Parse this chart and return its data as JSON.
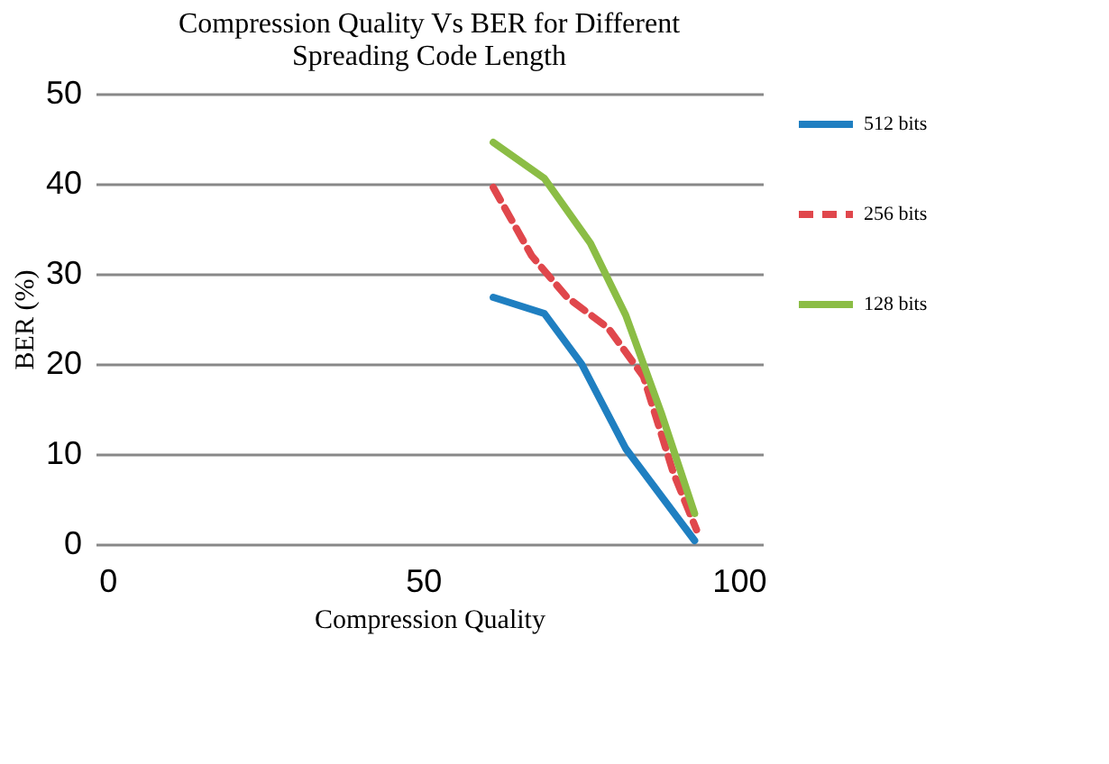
{
  "chart_data": {
    "type": "line",
    "title": [
      "Compression Quality Vs BER for Different",
      "Spreading Code Length"
    ],
    "xlabel": "Compression Quality",
    "ylabel": "BER (%)",
    "xlim": [
      -1.9,
      103.8
    ],
    "xticks": [
      0,
      50,
      100
    ],
    "ylim": [
      0,
      50
    ],
    "yticks": [
      0,
      10,
      20,
      30,
      40,
      50
    ],
    "grid": "y",
    "legend": "right",
    "marker": "none",
    "series": [
      {
        "name": "512 bits",
        "color": "#1f7fc1",
        "line_style": "solid",
        "x": [
          61.1,
          69.2,
          75.1,
          82.1,
          93
        ],
        "values": [
          27.4,
          25.6,
          20,
          10.6,
          0.4
        ]
      },
      {
        "name": "256 bits",
        "color": "#e0474c",
        "line_style": "dashed",
        "x": [
          61.1,
          67.2,
          72.8,
          79.3,
          84.9,
          89.6,
          93.3
        ],
        "values": [
          39.6,
          32,
          27.4,
          24,
          18.6,
          8,
          1.6
        ]
      },
      {
        "name": "128 bits",
        "color": "#8bbd45",
        "line_style": "solid",
        "x": [
          61.1,
          69.2,
          76.5,
          82.1,
          87.7,
          93
        ],
        "values": [
          44.6,
          40.6,
          33.4,
          25.4,
          14.6,
          3.4
        ]
      }
    ]
  }
}
